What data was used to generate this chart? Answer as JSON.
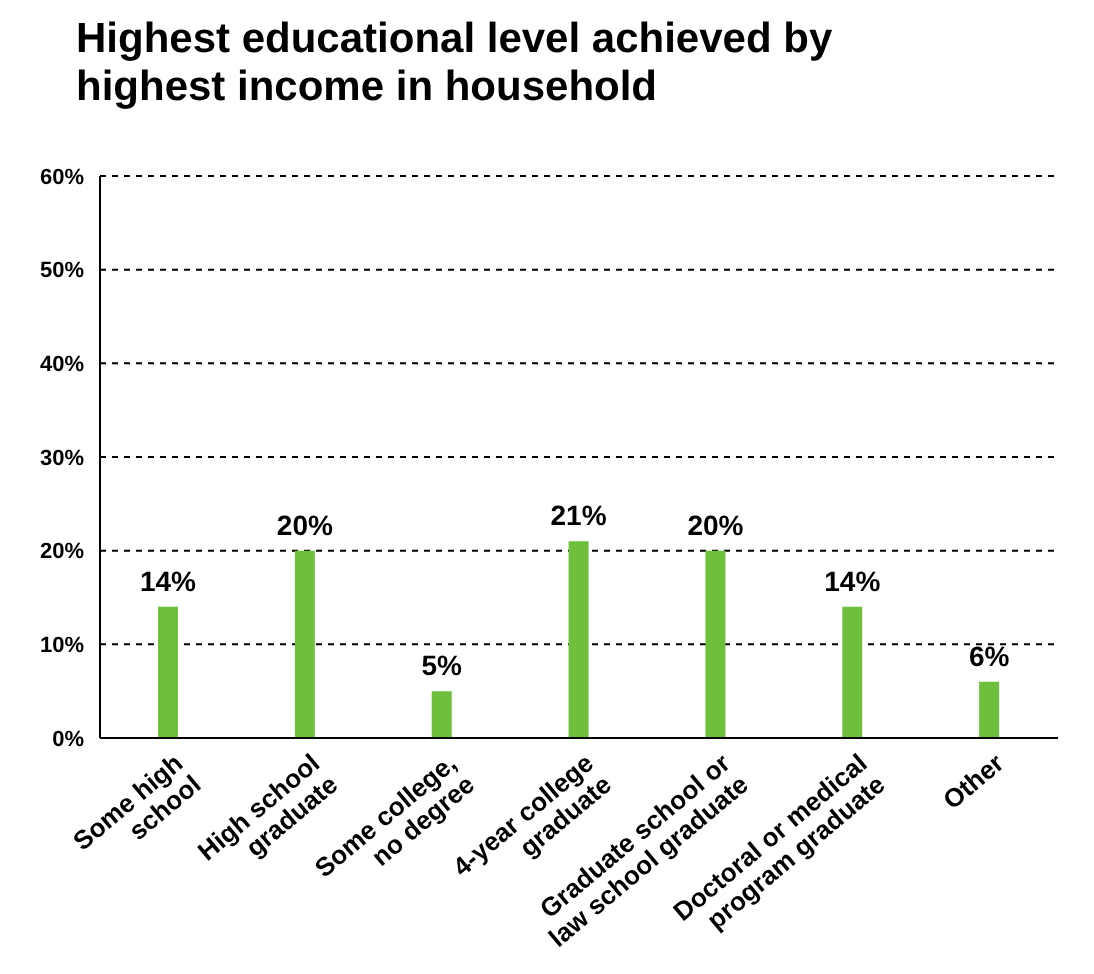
{
  "chart_data": {
    "type": "bar",
    "title": "Highest educational level achieved by highest income in household",
    "categories": [
      "Some high school",
      "High school graduate",
      "Some college, no degree",
      "4-year college graduate",
      "Graduate school or law school graduate",
      "Doctoral or medical program graduate",
      "Other"
    ],
    "values": [
      14,
      20,
      5,
      21,
      20,
      14,
      6
    ],
    "color": "#6dbf3c",
    "value_labels": [
      "14%",
      "20%",
      "5%",
      "21%",
      "20%",
      "14%",
      "6%"
    ],
    "ylim": [
      0,
      60
    ],
    "yticks": [
      {
        "value": 0,
        "label": "0%"
      },
      {
        "value": 10,
        "label": "10%"
      },
      {
        "value": 20,
        "label": "20%"
      },
      {
        "value": 30,
        "label": "30%"
      },
      {
        "value": 40,
        "label": "40%"
      },
      {
        "value": 50,
        "label": "50%"
      },
      {
        "value": 60,
        "label": "60%"
      }
    ],
    "grid": "y"
  }
}
